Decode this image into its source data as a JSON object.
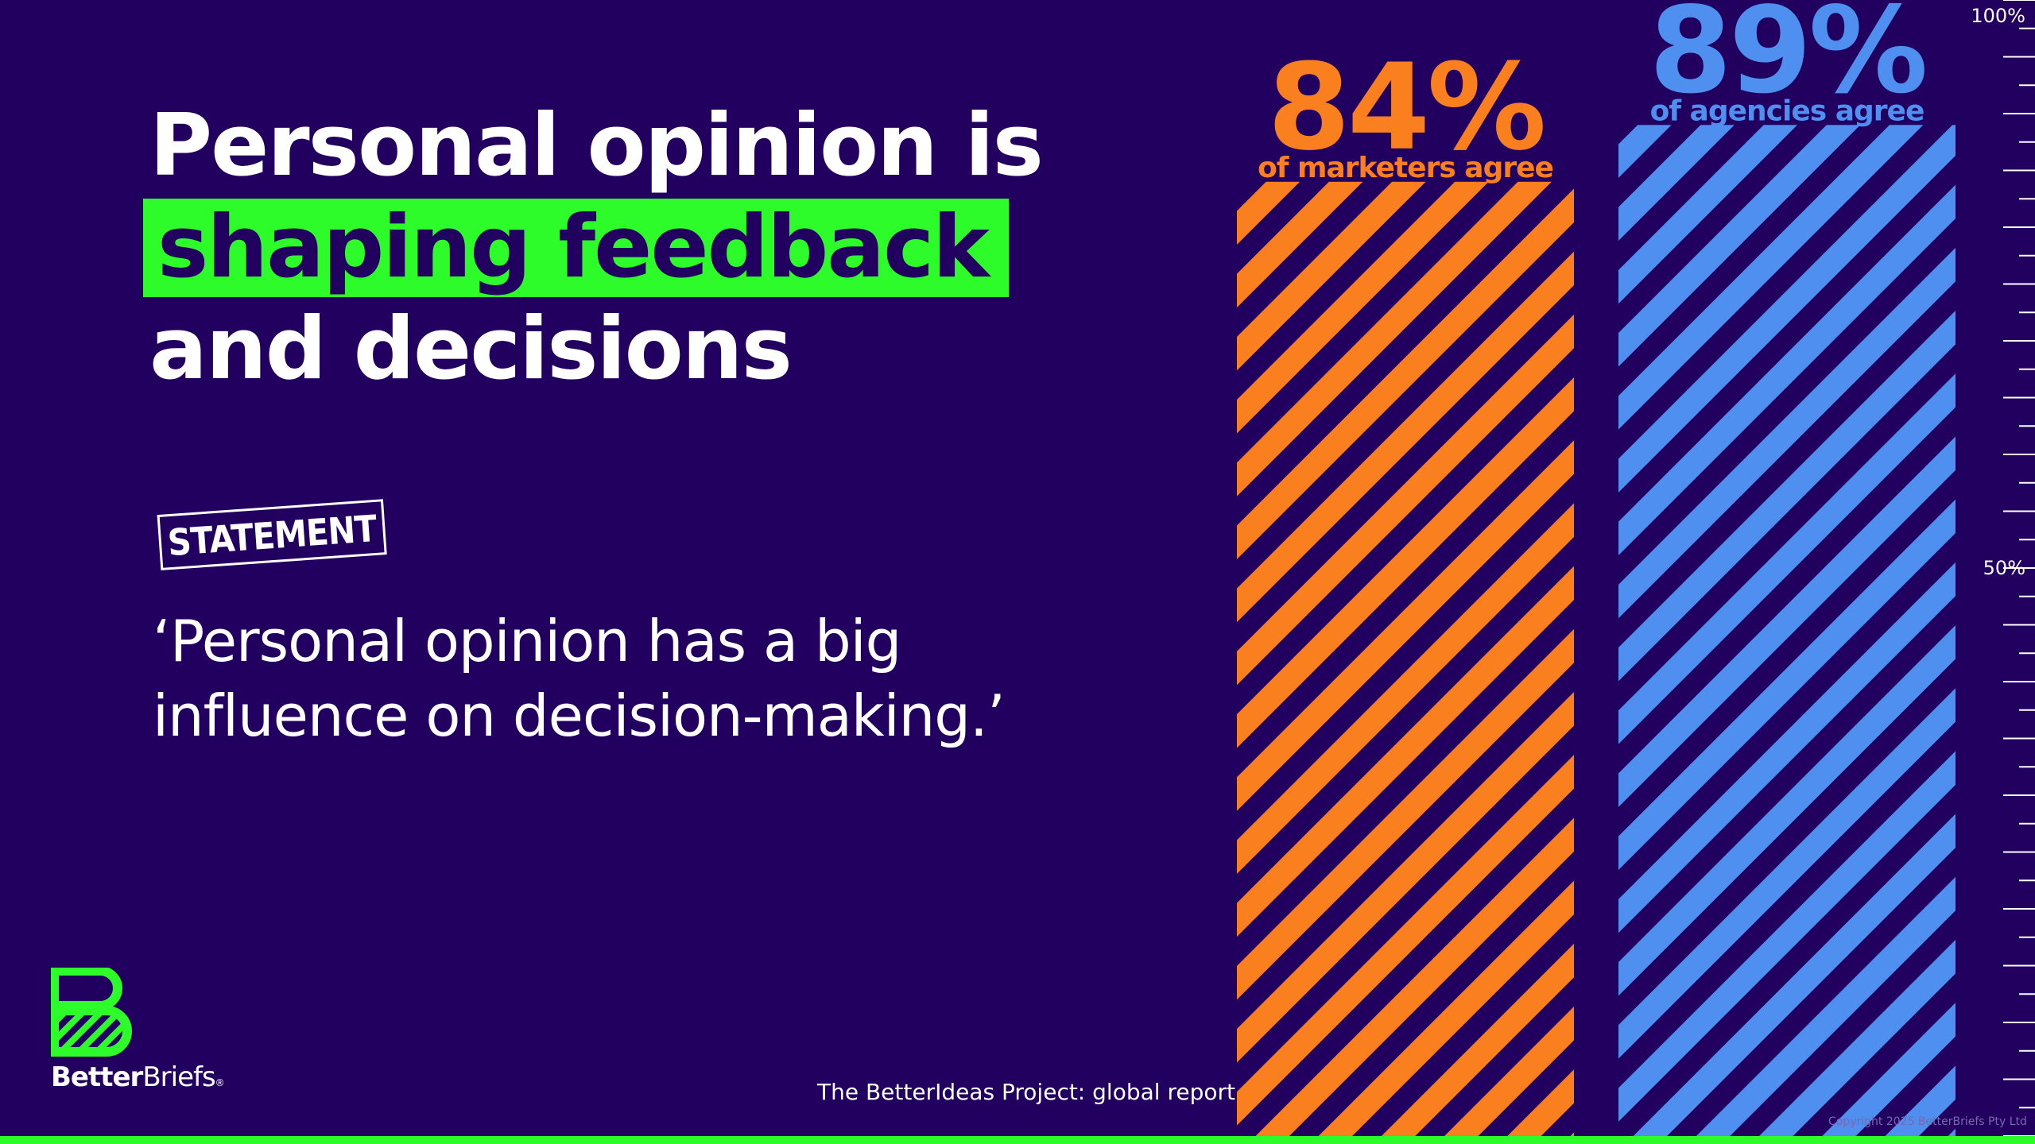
{
  "headline": {
    "line1": "Personal opinion is",
    "highlight": "shaping feedback",
    "line3": "and decisions"
  },
  "stamp": "STATEMENT",
  "quote": "‘Personal opinion has a big\n influence on decision-making.’",
  "brand": {
    "bold": "Better",
    "light": "Briefs",
    "reg": "®"
  },
  "footer": "The BetterIdeas Project: global report",
  "copyright": "Copyright 2025 BetterBriefs Pty Ltd",
  "colors": {
    "background": "#22005f",
    "accent": "#2dfc2a",
    "marketers": "#fa7f1e",
    "agencies": "#4f8ff0"
  },
  "chart_data": {
    "type": "bar",
    "categories": [
      "of marketers agree",
      "of agencies agree"
    ],
    "values": [
      84,
      89
    ],
    "value_labels": [
      "84%",
      "89%"
    ],
    "ylim": [
      0,
      100
    ],
    "y_ticks": [
      {
        "value": 100,
        "label": "100%"
      },
      {
        "value": 50,
        "label": "50%"
      }
    ],
    "minor_tick_step": 2.5,
    "bar_style": "diagonal-stripes"
  }
}
